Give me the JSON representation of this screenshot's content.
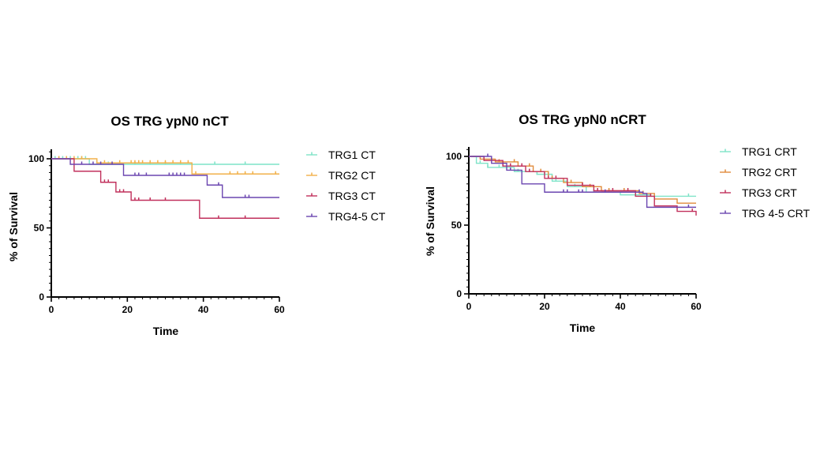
{
  "chart_data": [
    {
      "type": "line",
      "title": "OS TRG ypN0 nCT",
      "xlabel": "Time",
      "ylabel": "% of Survival",
      "xlim": [
        0,
        60
      ],
      "ylim": [
        0,
        100
      ],
      "xticks": [
        0,
        20,
        40,
        60
      ],
      "yticks": [
        0,
        50,
        100
      ],
      "legend_position": "right",
      "series": [
        {
          "name": "TRG1 CT",
          "color": "#7fe3c8",
          "steps": [
            [
              0,
              100
            ],
            [
              10,
              96
            ],
            [
              60,
              96
            ]
          ],
          "censors": [
            1,
            2,
            3,
            4,
            5,
            7,
            8,
            9,
            12,
            15,
            18,
            22,
            26,
            30,
            34,
            43,
            51
          ]
        },
        {
          "name": "TRG2 CT",
          "color": "#f2b14a",
          "steps": [
            [
              0,
              100
            ],
            [
              12,
              97
            ],
            [
              37,
              89
            ],
            [
              60,
              89
            ]
          ],
          "censors": [
            2,
            4,
            6,
            8,
            14,
            18,
            21,
            22,
            23,
            24,
            26,
            28,
            30,
            32,
            34,
            36,
            38,
            47,
            49,
            51,
            53,
            59
          ]
        },
        {
          "name": "TRG3 CT",
          "color": "#c1305c",
          "steps": [
            [
              0,
              100
            ],
            [
              6,
              91
            ],
            [
              13,
              83
            ],
            [
              17,
              76
            ],
            [
              21,
              70
            ],
            [
              39,
              57
            ],
            [
              60,
              57
            ]
          ],
          "censors": [
            14,
            15,
            18,
            19,
            22,
            23,
            26,
            30,
            44,
            51
          ]
        },
        {
          "name": "TRG4-5 CT",
          "color": "#6b46b0",
          "steps": [
            [
              0,
              100
            ],
            [
              5,
              96
            ],
            [
              19,
              88
            ],
            [
              41,
              81
            ],
            [
              45,
              72
            ],
            [
              60,
              72
            ]
          ],
          "censors": [
            8,
            11,
            13,
            16,
            22,
            23,
            25,
            31,
            32,
            33,
            34,
            35,
            44,
            51,
            52
          ]
        }
      ]
    },
    {
      "type": "line",
      "title": "OS TRG ypN0 nCRT",
      "xlabel": "Time",
      "ylabel": "% of Survival",
      "xlim": [
        0,
        60
      ],
      "ylim": [
        0,
        100
      ],
      "xticks": [
        0,
        20,
        40,
        60
      ],
      "yticks": [
        0,
        50,
        100
      ],
      "legend_position": "right",
      "series": [
        {
          "name": "TRG1 CRT",
          "color": "#7fe3c8",
          "steps": [
            [
              0,
              100
            ],
            [
              2,
              95
            ],
            [
              5,
              92
            ],
            [
              12,
              89
            ],
            [
              18,
              87
            ],
            [
              22,
              82
            ],
            [
              26,
              78
            ],
            [
              31,
              74
            ],
            [
              40,
              72
            ],
            [
              48,
              71
            ],
            [
              60,
              71
            ]
          ],
          "censors": [
            3,
            5,
            8,
            13,
            16,
            18,
            20,
            23,
            28,
            33,
            37,
            44,
            58
          ]
        },
        {
          "name": "TRG2 CRT",
          "color": "#e08a3a",
          "steps": [
            [
              0,
              100
            ],
            [
              3,
              98
            ],
            [
              7,
              96
            ],
            [
              13,
              93
            ],
            [
              17,
              89
            ],
            [
              21,
              84
            ],
            [
              25,
              81
            ],
            [
              30,
              78
            ],
            [
              35,
              75
            ],
            [
              45,
              73
            ],
            [
              49,
              69
            ],
            [
              55,
              66
            ],
            [
              60,
              66
            ]
          ],
          "censors": [
            4,
            8,
            12,
            16,
            19,
            22,
            27,
            32,
            37,
            41,
            46
          ]
        },
        {
          "name": "TRG3 CRT",
          "color": "#c1305c",
          "steps": [
            [
              0,
              100
            ],
            [
              4,
              97
            ],
            [
              9,
              93
            ],
            [
              15,
              89
            ],
            [
              20,
              84
            ],
            [
              26,
              79
            ],
            [
              33,
              75
            ],
            [
              44,
              71
            ],
            [
              49,
              64
            ],
            [
              55,
              60
            ],
            [
              60,
              57
            ]
          ],
          "censors": [
            6,
            9,
            11,
            14,
            16,
            21,
            23,
            26,
            30,
            34,
            38,
            42,
            48,
            59
          ]
        },
        {
          "name": "TRG 4-5 CRT",
          "color": "#6b46b0",
          "steps": [
            [
              0,
              100
            ],
            [
              6,
              95
            ],
            [
              10,
              90
            ],
            [
              14,
              80
            ],
            [
              20,
              74
            ],
            [
              34,
              74
            ],
            [
              46,
              73
            ],
            [
              47,
              63
            ],
            [
              57,
              63
            ],
            [
              60,
              63
            ]
          ],
          "censors": [
            5,
            11,
            25,
            26,
            29,
            30,
            36,
            45,
            58
          ]
        }
      ]
    }
  ]
}
